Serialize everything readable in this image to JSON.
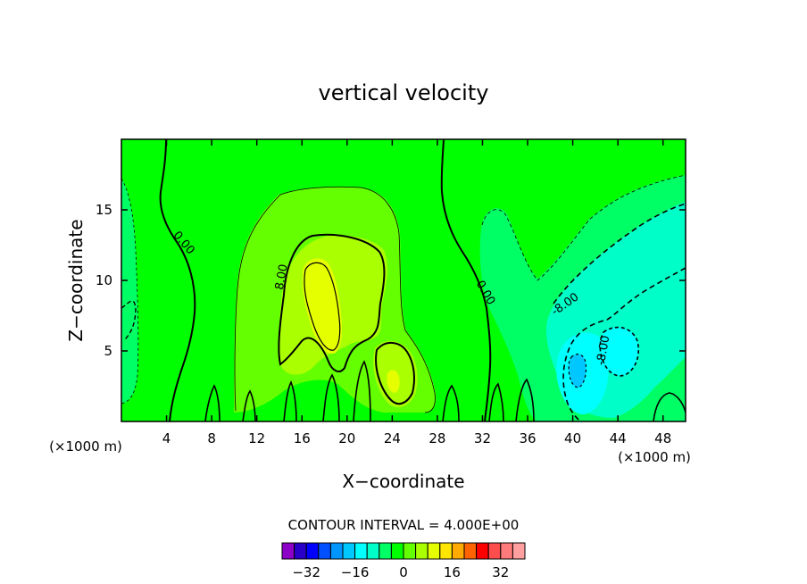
{
  "chart_data": {
    "type": "heatmap",
    "title": "vertical velocity",
    "xlabel": "X−coordinate",
    "ylabel": "Z−coordinate",
    "x_unit": "(×1000 m)",
    "y_unit": "(×1000 m)",
    "xlim": [
      0,
      50
    ],
    "ylim": [
      0,
      20
    ],
    "x_ticks": [
      4,
      8,
      12,
      16,
      20,
      24,
      28,
      32,
      36,
      40,
      44,
      48
    ],
    "y_ticks": [
      5,
      10,
      15
    ],
    "contour_interval_label": "CONTOUR INTERVAL = 4.000E+00",
    "contour_labels": [
      {
        "text": "0.00",
        "x": 5.3,
        "y": 12.5,
        "rotation": 50
      },
      {
        "text": "8.00",
        "x": 14.5,
        "y": 10.2,
        "rotation": -80
      },
      {
        "text": "0.00",
        "x": 32.0,
        "y": 9.0,
        "rotation": 60
      },
      {
        "text": "-8.00",
        "x": 39.5,
        "y": 8.1,
        "rotation": -35
      },
      {
        "text": "-8.00",
        "x": 43.0,
        "y": 5.0,
        "rotation": -80
      }
    ],
    "features": [
      {
        "kind": "updraft",
        "x": 17.8,
        "y": 9.2,
        "peak": 15
      },
      {
        "kind": "updraft",
        "x": 24.0,
        "y": 3.2,
        "peak": 14
      },
      {
        "kind": "weak-updraft",
        "x": 21.0,
        "y": 7.5,
        "peak": 7
      },
      {
        "kind": "downdraft",
        "x": 40.5,
        "y": 4.0,
        "peak": -14
      },
      {
        "kind": "downdraft-plume",
        "x": 45.0,
        "y": 11.0,
        "peak": -9
      },
      {
        "kind": "weak-downdraft",
        "x": 1.0,
        "y": 7.0,
        "peak": -5
      }
    ],
    "colorbar": {
      "ticks": [
        "−32",
        "−16",
        "0",
        "16",
        "32"
      ],
      "colors": [
        "#8c00c8",
        "#2800c8",
        "#0000ff",
        "#0050ff",
        "#0096ff",
        "#00c8ff",
        "#00ffff",
        "#00ffc8",
        "#00ff64",
        "#00ff00",
        "#64ff00",
        "#aaff00",
        "#e6ff00",
        "#ffe600",
        "#ffaa00",
        "#ff6400",
        "#ff0000",
        "#ff4c4c",
        "#ff7a7a",
        "#ff9f9f"
      ],
      "min": -40,
      "max": 40
    },
    "grid": false,
    "legend": "bottom"
  }
}
